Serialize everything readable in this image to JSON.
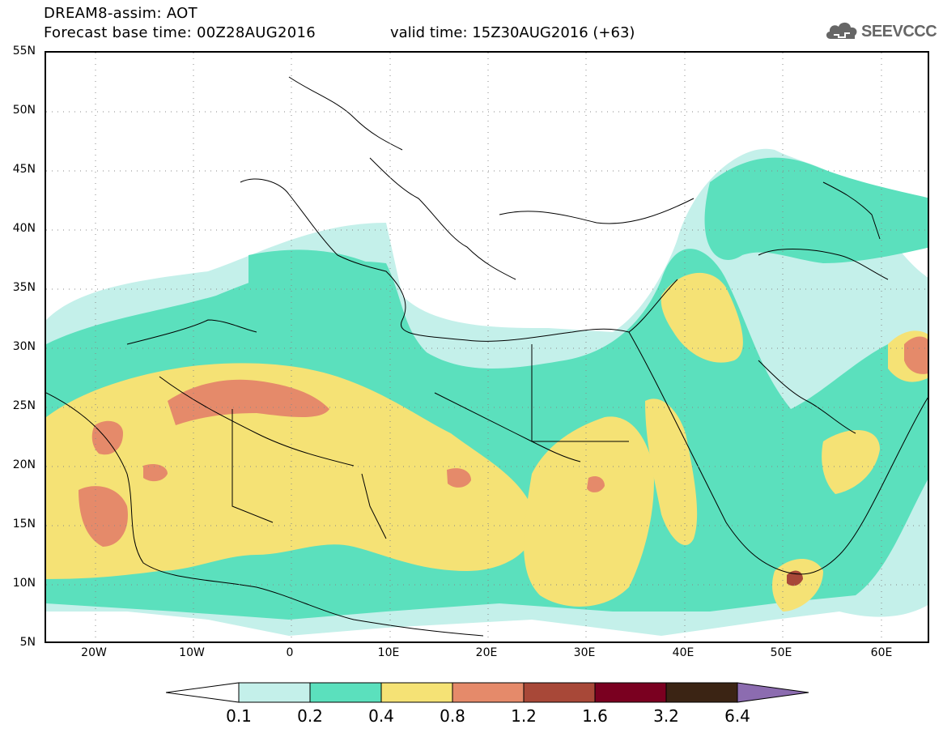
{
  "header": {
    "title_line1": "DREAM8-assim: AOT",
    "title_line2": "Forecast base time: 00Z28AUG2016",
    "valid_time": "valid time: 15Z30AUG2016 (+63)"
  },
  "logo": {
    "text": "SEEVCCC",
    "icon": "cloud-icon"
  },
  "axes": {
    "lat_labels": [
      "55N",
      "50N",
      "45N",
      "40N",
      "35N",
      "30N",
      "25N",
      "20N",
      "15N",
      "10N",
      "5N"
    ],
    "lon_labels": [
      "20W",
      "10W",
      "0",
      "10E",
      "20E",
      "30E",
      "40E",
      "50E",
      "60E"
    ]
  },
  "colorbar": {
    "labels": [
      "0.1",
      "0.2",
      "0.4",
      "0.8",
      "1.2",
      "1.6",
      "3.2",
      "6.4"
    ],
    "colors": [
      "#ffffff",
      "#c4f0ea",
      "#5be0bd",
      "#f5e275",
      "#e58a6a",
      "#a84838",
      "#7a0020",
      "#3b2414",
      "#8c6cb0"
    ]
  },
  "colors": {
    "band_0_1_0_2": "#c4f0ea",
    "band_0_2_0_4": "#5be0bd",
    "band_0_4_0_8": "#f5e275",
    "band_0_8_1_2": "#e58a6a",
    "band_1_2_1_6": "#a84838"
  }
}
